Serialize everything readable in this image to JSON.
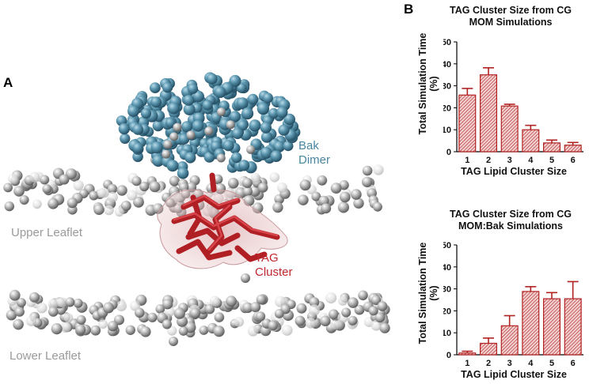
{
  "panel_a": {
    "letter": "A",
    "labels": {
      "bak_line1": "Bak",
      "bak_line2": "Dimer",
      "tag_line1": "TAG",
      "tag_line2": "Cluster",
      "upper_leaflet": "Upper Leaflet",
      "lower_leaflet": "Lower Leaflet"
    },
    "colors": {
      "bak": "#4a86a0",
      "tag": "#c0272d",
      "lipid": "#9a9a9a"
    }
  },
  "panel_b": {
    "letter": "B"
  },
  "chart_data": [
    {
      "type": "bar",
      "title_line1": "TAG Cluster Size from CG",
      "title_line2": "MOM Simulations",
      "xlabel": "TAG Lipid Cluster Size",
      "ylabel_line1": "Total Simulation Time",
      "ylabel_line2": "(%)",
      "categories": [
        "1",
        "2",
        "3",
        "4",
        "5",
        "6"
      ],
      "values": [
        25.8,
        35.0,
        20.8,
        10.0,
        4.0,
        3.0
      ],
      "errors": [
        3.0,
        3.2,
        0.8,
        2.0,
        1.3,
        1.2
      ],
      "ylim": [
        0,
        50
      ],
      "yticks": [
        "0",
        "10",
        "20",
        "30",
        "40",
        "50"
      ],
      "bar_color": "#b22222"
    },
    {
      "type": "bar",
      "title_line1": "TAG Cluster Size from CG",
      "title_line2": "MOM:Bak Simulations",
      "xlabel": "TAG Lipid Cluster Size",
      "ylabel_line1": "Total Simulation Time",
      "ylabel_line2": "(%)",
      "categories": [
        "1",
        "2",
        "3",
        "4",
        "5",
        "6"
      ],
      "values": [
        0.8,
        5.2,
        13.2,
        28.8,
        25.5,
        25.5
      ],
      "errors": [
        0.8,
        2.4,
        4.6,
        2.2,
        2.8,
        7.8
      ],
      "ylim": [
        0,
        50
      ],
      "yticks": [
        "0",
        "10",
        "20",
        "30",
        "40",
        "50"
      ],
      "bar_color": "#b22222"
    }
  ]
}
